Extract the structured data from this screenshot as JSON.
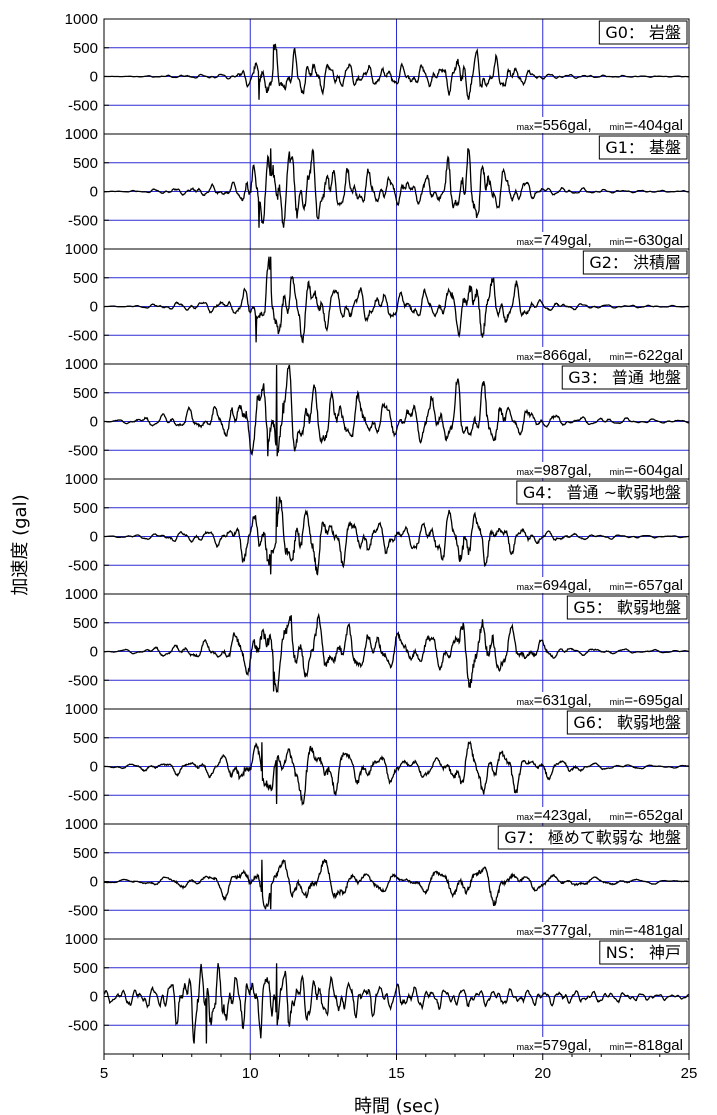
{
  "chart_data": {
    "type": "line",
    "xlabel": "時間 (sec)",
    "ylabel": "加速度 (gal)",
    "xlim": [
      5,
      25
    ],
    "xticks": [
      "5",
      "10",
      "15",
      "20",
      "25"
    ],
    "ylim": [
      -1000,
      1000
    ],
    "yticks_top": "1000",
    "yticks": [
      "500",
      "0",
      "-500"
    ],
    "grid": true,
    "grid_color": "#2b2bd6",
    "line_color": "#000000",
    "series": [
      {
        "name": "G0： 岩盤",
        "max": 556,
        "min": -404,
        "max_label": "=556gal,",
        "min_label": "=-404gal"
      },
      {
        "name": "G1： 基盤",
        "max": 749,
        "min": -630,
        "max_label": "=749gal,",
        "min_label": "=-630gal"
      },
      {
        "name": "G2： 洪積層",
        "max": 866,
        "min": -622,
        "max_label": "=866gal,",
        "min_label": "=-622gal"
      },
      {
        "name": "G3： 普通 地盤",
        "max": 987,
        "min": -604,
        "max_label": "=987gal,",
        "min_label": "=-604gal"
      },
      {
        "name": "G4： 普通 ~軟弱地盤",
        "max": 694,
        "min": -657,
        "max_label": "=694gal,",
        "min_label": "=-657gal"
      },
      {
        "name": "G5： 軟弱地盤",
        "max": 631,
        "min": -695,
        "max_label": "=631gal,",
        "min_label": "=-695gal"
      },
      {
        "name": "G6： 軟弱地盤",
        "max": 423,
        "min": -652,
        "max_label": "=423gal,",
        "min_label": "=-652gal"
      },
      {
        "name": "G7： 極めて軟弱な 地盤",
        "max": 377,
        "min": -481,
        "max_label": "=377gal,",
        "min_label": "=-481gal"
      },
      {
        "name": "NS： 神戸",
        "max": 579,
        "min": -818,
        "max_label": "=579gal,",
        "min_label": "=-818gal"
      }
    ],
    "max_sub": "max",
    "min_sub": "min"
  }
}
